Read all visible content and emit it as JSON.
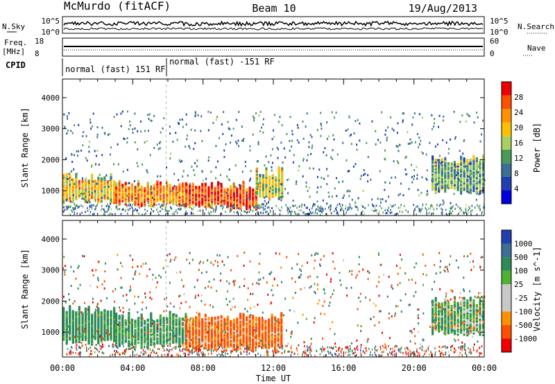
{
  "header": {
    "station": "McMurdo (fitACF)",
    "beam": "Beam 10",
    "date": "19/Aug/2013"
  },
  "noise_panel": {
    "left_label": "N.Sky",
    "right_label": "N.Search",
    "left_ticks": [
      "10^5",
      "10^0"
    ],
    "right_ticks": [
      "10^5",
      "10^0"
    ]
  },
  "freq_panel": {
    "left_label_1": "Freq.",
    "left_label_2": "[MHz]",
    "left_ticks": [
      "18",
      "8"
    ],
    "right_label": "Nave",
    "right_ticks": [
      "60",
      "0"
    ]
  },
  "cpid": {
    "label": "CPID",
    "segments": [
      {
        "label": "normal (fast) 151 RF",
        "start_hour": 0,
        "end_hour": 5.9
      },
      {
        "label": "normal (fast) -151 RF",
        "start_hour": 5.9,
        "end_hour": 24
      }
    ]
  },
  "time_axis": {
    "label": "Time UT",
    "ticks": [
      "00:00",
      "04:00",
      "08:00",
      "12:00",
      "16:00",
      "20:00",
      "00:00"
    ]
  },
  "range_axis": {
    "label": "Slant Range [km]",
    "ticks": [
      "4000",
      "3000",
      "2000",
      "1000"
    ]
  },
  "colors": {
    "power": [
      "#0000e0",
      "#2040b0",
      "#3c6e96",
      "#4a9a5a",
      "#a8d060",
      "#ffc000",
      "#ff9000",
      "#ff5000",
      "#f00000"
    ],
    "velocity": [
      "#f00000",
      "#ff5000",
      "#ff9000",
      "#c8c8c8",
      "#c8c8c8",
      "#50b030",
      "#2e8b57",
      "#3c6e96",
      "#2040b0"
    ]
  },
  "chart_data": [
    {
      "type": "heatmap",
      "name": "Power",
      "colorbar_label": "Power [dB]",
      "colorbar_ticks": [
        "28",
        "24",
        "20",
        "16",
        "12",
        "8",
        "4"
      ],
      "xlim": [
        0,
        24
      ],
      "ylim": [
        200,
        4600
      ],
      "x_unit": "hours UT",
      "bands": [
        {
          "t0": 0,
          "t1": 3,
          "lo": 700,
          "hi": 1400,
          "value": 18
        },
        {
          "t0": 3,
          "t1": 7,
          "lo": 600,
          "hi": 1200,
          "value": 22
        },
        {
          "t0": 7,
          "t1": 11,
          "lo": 500,
          "hi": 1200,
          "value": 26
        },
        {
          "t0": 11,
          "t1": 12.5,
          "lo": 800,
          "hi": 1600,
          "value": 16
        },
        {
          "t0": 21,
          "t1": 24,
          "lo": 1000,
          "hi": 2000,
          "value": 12
        }
      ]
    },
    {
      "type": "heatmap",
      "name": "Velocity",
      "colorbar_label": "Velocity [m s^-1]",
      "colorbar_ticks": [
        "1000",
        "500",
        "100",
        "25",
        "-25",
        "-100",
        "-500",
        "-1000"
      ],
      "xlim": [
        0,
        24
      ],
      "ylim": [
        200,
        4600
      ],
      "x_unit": "hours UT",
      "bands": [
        {
          "t0": 0,
          "t1": 3,
          "lo": 700,
          "hi": 1700,
          "value": 200
        },
        {
          "t0": 3,
          "t1": 7,
          "lo": 600,
          "hi": 1500,
          "value": 150
        },
        {
          "t0": 7,
          "t1": 12.5,
          "lo": 500,
          "hi": 1500,
          "value": -150
        },
        {
          "t0": 21,
          "t1": 24,
          "lo": 1000,
          "hi": 2000,
          "value": 100
        }
      ]
    }
  ]
}
